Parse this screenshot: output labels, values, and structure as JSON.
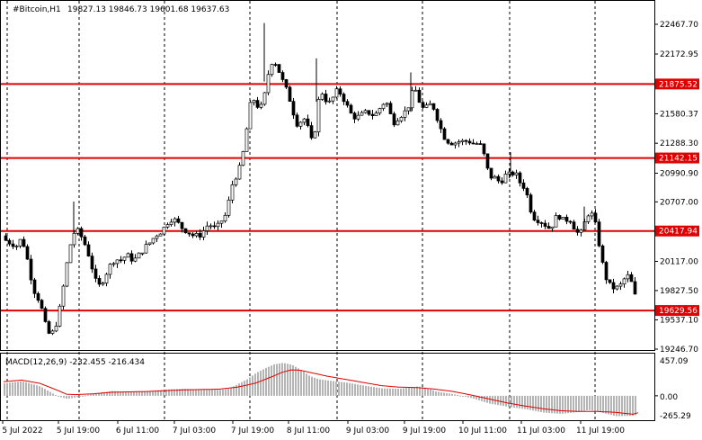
{
  "header": {
    "symbol": "#Bitcoin,H1",
    "ohlc": "19827.13 19846.73 19601.68 19637.63"
  },
  "macd": {
    "label": "MACD(12,26,9) -232.455 -216.434",
    "y_labels": [
      "457.09",
      "0.00",
      "-265.29"
    ]
  },
  "chart_data": {
    "type": "candlestick",
    "symbol": "#Bitcoin",
    "timeframe": "H1",
    "ylim": [
      19246.7,
      22467.7
    ],
    "y_ticks": [
      "22467.70",
      "22172.95",
      "21580.37",
      "21288.30",
      "20990.90",
      "20707.00",
      "20117.00",
      "19827.50",
      "19537.10",
      "19246.70"
    ],
    "x_ticks": [
      "5 Jul 2022",
      "5 Jul 19:00",
      "6 Jul 11:00",
      "7 Jul 03:00",
      "7 Jul 19:00",
      "8 Jul 11:00",
      "9 Jul 03:00",
      "9 Jul 19:00",
      "10 Jul 11:00",
      "11 Jul 03:00",
      "11 Jul 19:00"
    ],
    "levels": [
      {
        "value": 21875.52,
        "label": "21875.52",
        "color": "#e00000"
      },
      {
        "value": 21142.15,
        "label": "21142.15",
        "color": "#e00000"
      },
      {
        "value": 20417.94,
        "label": "20417.94",
        "color": "#e00000"
      },
      {
        "value": 19629.56,
        "label": "19629.56",
        "color": "#e00000"
      }
    ],
    "close_path": [
      [
        0,
        20370
      ],
      [
        4,
        20280
      ],
      [
        8,
        20330
      ],
      [
        12,
        20250
      ],
      [
        16,
        20300
      ],
      [
        20,
        20350
      ],
      [
        24,
        20210
      ],
      [
        28,
        20060
      ],
      [
        32,
        19860
      ],
      [
        36,
        19780
      ],
      [
        40,
        19720
      ],
      [
        44,
        19560
      ],
      [
        48,
        19420
      ],
      [
        52,
        19380
      ],
      [
        56,
        19440
      ],
      [
        60,
        19560
      ],
      [
        64,
        19740
      ],
      [
        68,
        19990
      ],
      [
        72,
        20200
      ],
      [
        76,
        20370
      ],
      [
        80,
        20430
      ],
      [
        84,
        20400
      ],
      [
        88,
        20320
      ],
      [
        92,
        20250
      ],
      [
        96,
        20120
      ],
      [
        100,
        19990
      ],
      [
        104,
        19850
      ],
      [
        108,
        19900
      ],
      [
        112,
        19960
      ],
      [
        116,
        20050
      ],
      [
        120,
        20100
      ],
      [
        124,
        20150
      ],
      [
        128,
        20120
      ],
      [
        132,
        20140
      ],
      [
        136,
        20180
      ],
      [
        140,
        20160
      ],
      [
        144,
        20120
      ],
      [
        148,
        20160
      ],
      [
        152,
        20200
      ],
      [
        156,
        20250
      ],
      [
        160,
        20280
      ],
      [
        164,
        20320
      ],
      [
        168,
        20370
      ],
      [
        172,
        20400
      ],
      [
        176,
        20420
      ],
      [
        180,
        20480
      ],
      [
        184,
        20530
      ],
      [
        188,
        20540
      ],
      [
        192,
        20510
      ],
      [
        196,
        20470
      ],
      [
        200,
        20430
      ],
      [
        204,
        20420
      ],
      [
        208,
        20380
      ],
      [
        212,
        20370
      ],
      [
        216,
        20370
      ],
      [
        220,
        20390
      ],
      [
        224,
        20450
      ],
      [
        228,
        20490
      ],
      [
        232,
        20460
      ],
      [
        236,
        20430
      ],
      [
        240,
        20500
      ],
      [
        244,
        20540
      ],
      [
        248,
        20600
      ],
      [
        252,
        20820
      ],
      [
        256,
        20940
      ],
      [
        260,
        20980
      ],
      [
        264,
        21100
      ],
      [
        268,
        21290
      ],
      [
        272,
        21570
      ],
      [
        276,
        21760
      ],
      [
        280,
        21680
      ],
      [
        284,
        21640
      ],
      [
        288,
        21660
      ],
      [
        292,
        21880
      ],
      [
        296,
        22070
      ],
      [
        300,
        22120
      ],
      [
        304,
        22050
      ],
      [
        308,
        21950
      ],
      [
        312,
        21860
      ],
      [
        316,
        21780
      ],
      [
        320,
        21660
      ],
      [
        324,
        21520
      ],
      [
        328,
        21450
      ],
      [
        332,
        21560
      ],
      [
        336,
        21500
      ],
      [
        340,
        21380
      ],
      [
        344,
        21250
      ],
      [
        348,
        21600
      ],
      [
        352,
        21820
      ],
      [
        356,
        21760
      ],
      [
        360,
        21680
      ],
      [
        364,
        21700
      ],
      [
        368,
        21780
      ],
      [
        372,
        21820
      ],
      [
        376,
        21750
      ],
      [
        380,
        21700
      ],
      [
        384,
        21600
      ],
      [
        388,
        21560
      ],
      [
        392,
        21540
      ],
      [
        396,
        21560
      ],
      [
        400,
        21580
      ],
      [
        404,
        21600
      ],
      [
        408,
        21580
      ],
      [
        412,
        21560
      ],
      [
        416,
        21600
      ],
      [
        420,
        21670
      ],
      [
        424,
        21700
      ],
      [
        428,
        21660
      ],
      [
        432,
        21480
      ],
      [
        436,
        21520
      ],
      [
        440,
        21560
      ],
      [
        444,
        21580
      ],
      [
        448,
        21620
      ],
      [
        452,
        21700
      ],
      [
        456,
        21860
      ],
      [
        460,
        21760
      ],
      [
        464,
        21650
      ],
      [
        468,
        21620
      ],
      [
        472,
        21660
      ],
      [
        476,
        21680
      ],
      [
        480,
        21600
      ],
      [
        484,
        21480
      ],
      [
        488,
        21380
      ],
      [
        492,
        21320
      ],
      [
        496,
        21300
      ],
      [
        500,
        21290
      ],
      [
        504,
        21300
      ],
      [
        508,
        21310
      ],
      [
        512,
        21300
      ],
      [
        516,
        21320
      ],
      [
        520,
        21290
      ],
      [
        524,
        21280
      ],
      [
        528,
        21290
      ],
      [
        532,
        21240
      ],
      [
        536,
        21100
      ],
      [
        540,
        20950
      ],
      [
        544,
        20960
      ],
      [
        548,
        20930
      ],
      [
        552,
        20900
      ],
      [
        556,
        20950
      ],
      [
        560,
        20990
      ],
      [
        564,
        20960
      ],
      [
        568,
        21020
      ],
      [
        572,
        20920
      ],
      [
        576,
        20880
      ],
      [
        580,
        20840
      ],
      [
        584,
        20700
      ],
      [
        588,
        20560
      ],
      [
        592,
        20540
      ],
      [
        596,
        20520
      ],
      [
        600,
        20500
      ],
      [
        604,
        20460
      ],
      [
        608,
        20440
      ],
      [
        612,
        20520
      ],
      [
        616,
        20580
      ],
      [
        620,
        20550
      ],
      [
        624,
        20500
      ],
      [
        628,
        20560
      ],
      [
        632,
        20500
      ],
      [
        636,
        20420
      ],
      [
        640,
        20380
      ],
      [
        644,
        20420
      ],
      [
        648,
        20580
      ],
      [
        652,
        20600
      ],
      [
        656,
        20560
      ],
      [
        660,
        20400
      ],
      [
        664,
        20180
      ],
      [
        668,
        20000
      ],
      [
        672,
        19900
      ],
      [
        676,
        19860
      ],
      [
        680,
        19850
      ],
      [
        684,
        19860
      ],
      [
        688,
        19900
      ],
      [
        692,
        19980
      ],
      [
        696,
        19960
      ],
      [
        700,
        19850
      ],
      [
        704,
        19700
      ],
      [
        706,
        19638
      ]
    ],
    "macd": {
      "label": "MACD(12,26,9)",
      "value": -232.455,
      "signal": -216.434,
      "ylim": [
        -265.29,
        457.09
      ],
      "hist_path": [
        [
          0,
          160
        ],
        [
          20,
          185
        ],
        [
          40,
          120
        ],
        [
          60,
          -10
        ],
        [
          70,
          -40
        ],
        [
          80,
          -20
        ],
        [
          100,
          30
        ],
        [
          120,
          60
        ],
        [
          140,
          50
        ],
        [
          160,
          55
        ],
        [
          180,
          80
        ],
        [
          200,
          90
        ],
        [
          220,
          80
        ],
        [
          240,
          75
        ],
        [
          250,
          90
        ],
        [
          260,
          150
        ],
        [
          270,
          210
        ],
        [
          280,
          290
        ],
        [
          290,
          350
        ],
        [
          300,
          400
        ],
        [
          310,
          420
        ],
        [
          320,
          395
        ],
        [
          330,
          330
        ],
        [
          340,
          250
        ],
        [
          350,
          210
        ],
        [
          360,
          195
        ],
        [
          380,
          170
        ],
        [
          400,
          130
        ],
        [
          420,
          95
        ],
        [
          440,
          90
        ],
        [
          460,
          120
        ],
        [
          470,
          100
        ],
        [
          480,
          55
        ],
        [
          500,
          20
        ],
        [
          520,
          -30
        ],
        [
          540,
          -100
        ],
        [
          560,
          -140
        ],
        [
          580,
          -170
        ],
        [
          600,
          -215
        ],
        [
          620,
          -230
        ],
        [
          640,
          -205
        ],
        [
          650,
          -180
        ],
        [
          660,
          -200
        ],
        [
          680,
          -260
        ],
        [
          700,
          -255
        ],
        [
          706,
          -232
        ]
      ],
      "signal_path": [
        [
          0,
          180
        ],
        [
          20,
          200
        ],
        [
          40,
          160
        ],
        [
          60,
          70
        ],
        [
          70,
          20
        ],
        [
          80,
          15
        ],
        [
          100,
          25
        ],
        [
          120,
          45
        ],
        [
          140,
          50
        ],
        [
          160,
          55
        ],
        [
          180,
          65
        ],
        [
          200,
          75
        ],
        [
          220,
          80
        ],
        [
          240,
          85
        ],
        [
          260,
          110
        ],
        [
          280,
          160
        ],
        [
          300,
          250
        ],
        [
          310,
          300
        ],
        [
          320,
          330
        ],
        [
          330,
          325
        ],
        [
          340,
          300
        ],
        [
          360,
          250
        ],
        [
          380,
          210
        ],
        [
          400,
          170
        ],
        [
          420,
          130
        ],
        [
          440,
          110
        ],
        [
          460,
          105
        ],
        [
          480,
          85
        ],
        [
          500,
          55
        ],
        [
          520,
          10
        ],
        [
          540,
          -40
        ],
        [
          560,
          -90
        ],
        [
          580,
          -130
        ],
        [
          600,
          -165
        ],
        [
          620,
          -190
        ],
        [
          640,
          -200
        ],
        [
          660,
          -200
        ],
        [
          680,
          -210
        ],
        [
          700,
          -235
        ],
        [
          706,
          -216
        ]
      ]
    }
  }
}
